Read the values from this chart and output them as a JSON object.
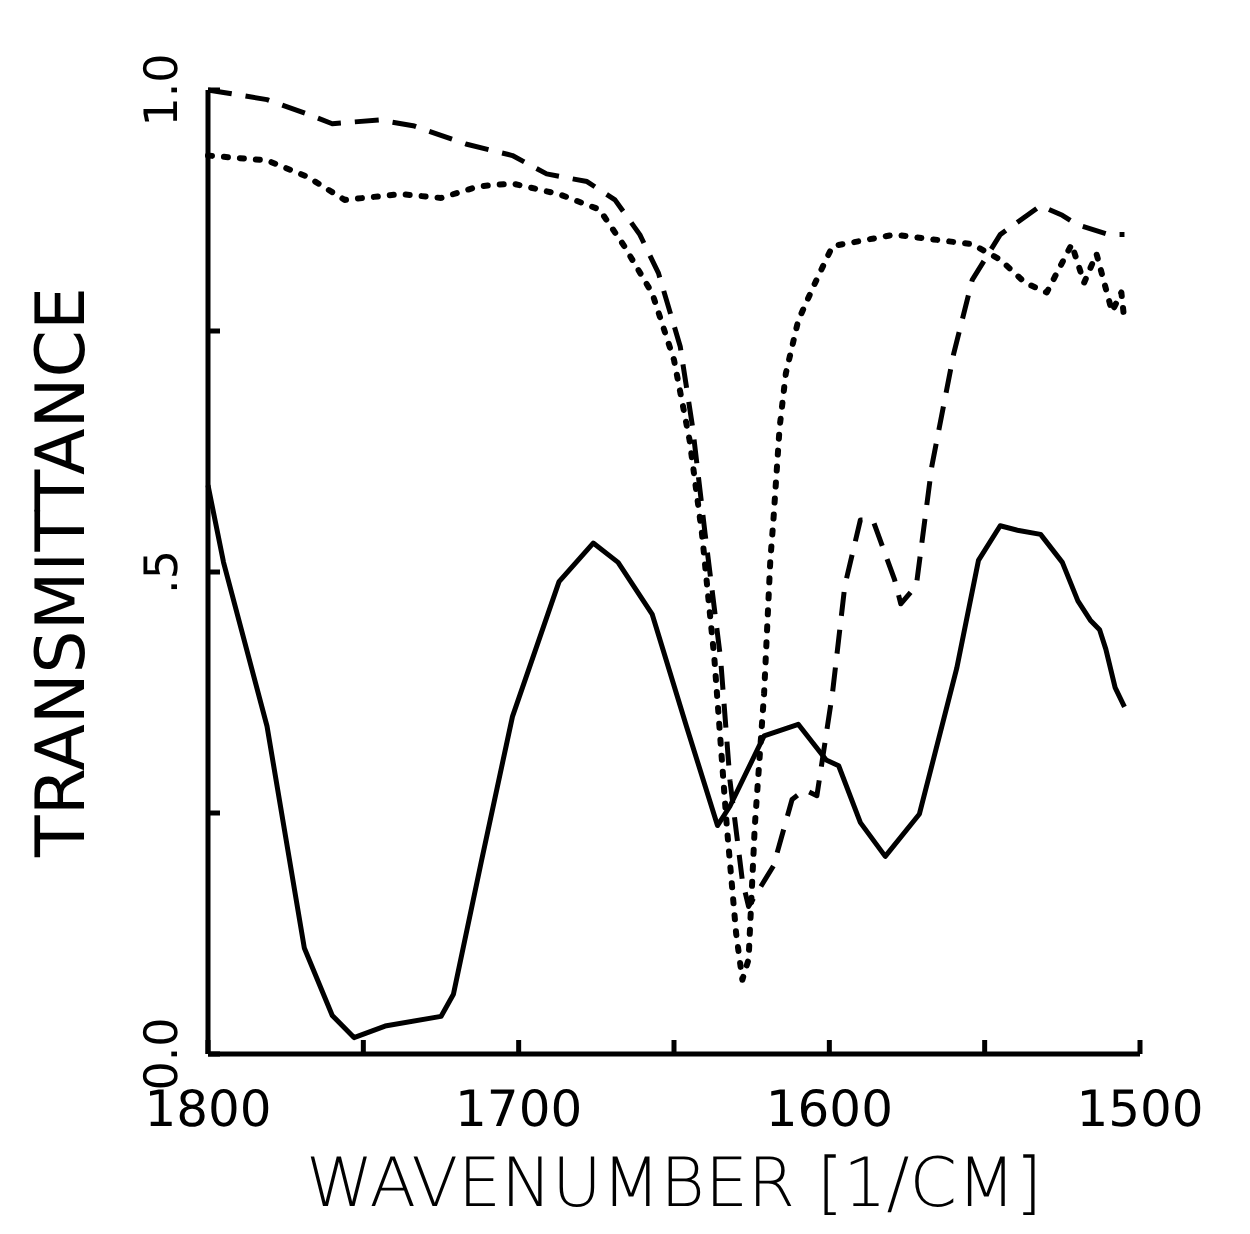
{
  "chart_data": {
    "type": "line",
    "xlabel": "WAVENUMBER [1/CM]",
    "ylabel": "TRANSMITTANCE",
    "xlim": [
      1800,
      1500
    ],
    "ylim": [
      0,
      1
    ],
    "xticks": [
      1800,
      {
        "value": 1750,
        "label": null
      },
      1700,
      {
        "value": 1650,
        "label": null
      },
      1600,
      {
        "value": 1550,
        "label": null
      },
      1500
    ],
    "yticks": [
      {
        "value": 0,
        "label": "0.0"
      },
      {
        "value": 0.25,
        "label": null
      },
      {
        "value": 0.5,
        "label": ".5"
      },
      {
        "value": 0.75,
        "label": null
      },
      {
        "value": 1,
        "label": "1.0"
      }
    ],
    "series": [
      {
        "color": "#000000",
        "line_style": "solid",
        "x": [
          1800,
          1795,
          1781,
          1769,
          1760,
          1753,
          1743,
          1725,
          1721,
          1712,
          1702,
          1687,
          1676,
          1668,
          1657,
          1646,
          1636,
          1632,
          1621,
          1610,
          1601,
          1597,
          1590,
          1582,
          1571,
          1559,
          1552,
          1545,
          1539,
          1532,
          1525,
          1520,
          1516,
          1513,
          1511,
          1508,
          1505
        ],
        "values": [
          0.59,
          0.51,
          0.34,
          0.11,
          0.04,
          0.017,
          0.029,
          0.039,
          0.062,
          0.2,
          0.35,
          0.49,
          0.53,
          0.51,
          0.456,
          0.34,
          0.237,
          0.257,
          0.33,
          0.342,
          0.305,
          0.299,
          0.24,
          0.205,
          0.249,
          0.4,
          0.512,
          0.548,
          0.543,
          0.539,
          0.51,
          0.47,
          0.45,
          0.44,
          0.42,
          0.38,
          0.36
        ]
      },
      {
        "color": "#000000",
        "line_style": "dashed",
        "x": [
          1800,
          1796,
          1781,
          1768,
          1760,
          1745,
          1734,
          1717,
          1702,
          1691,
          1678,
          1669,
          1661,
          1655,
          1648,
          1644,
          1640,
          1635,
          1632,
          1628,
          1626,
          1618,
          1612,
          1608,
          1604,
          1599,
          1595,
          1590,
          1586,
          1579,
          1577,
          1572,
          1567,
          1560,
          1554,
          1545,
          1532,
          1525,
          1520,
          1510,
          1505
        ],
        "values": [
          1.0,
          0.998,
          0.99,
          0.975,
          0.965,
          0.969,
          0.963,
          0.944,
          0.932,
          0.913,
          0.905,
          0.886,
          0.85,
          0.81,
          0.734,
          0.65,
          0.54,
          0.41,
          0.284,
          0.18,
          0.153,
          0.195,
          0.264,
          0.274,
          0.268,
          0.374,
          0.486,
          0.554,
          0.554,
          0.492,
          0.467,
          0.486,
          0.61,
          0.726,
          0.803,
          0.85,
          0.88,
          0.87,
          0.86,
          0.85,
          0.85
        ]
      },
      {
        "color": "#000000",
        "line_style": "dotted",
        "x": [
          1800,
          1781,
          1768,
          1756,
          1738,
          1725,
          1713,
          1702,
          1687,
          1674,
          1666,
          1657,
          1650,
          1645,
          1641,
          1637,
          1633,
          1630,
          1628,
          1626,
          1624,
          1621,
          1619,
          1618,
          1616,
          1614,
          1610,
          1605,
          1599,
          1579,
          1554,
          1545,
          1537,
          1530,
          1522,
          1518,
          1514,
          1509,
          1506,
          1505
        ],
        "values": [
          0.932,
          0.927,
          0.91,
          0.886,
          0.892,
          0.888,
          0.9,
          0.903,
          0.892,
          0.876,
          0.838,
          0.789,
          0.72,
          0.637,
          0.54,
          0.41,
          0.236,
          0.125,
          0.077,
          0.098,
          0.236,
          0.374,
          0.512,
          0.554,
          0.65,
          0.706,
          0.761,
          0.797,
          0.838,
          0.85,
          0.84,
          0.824,
          0.8,
          0.79,
          0.84,
          0.8,
          0.83,
          0.77,
          0.79,
          0.76
        ]
      }
    ]
  }
}
